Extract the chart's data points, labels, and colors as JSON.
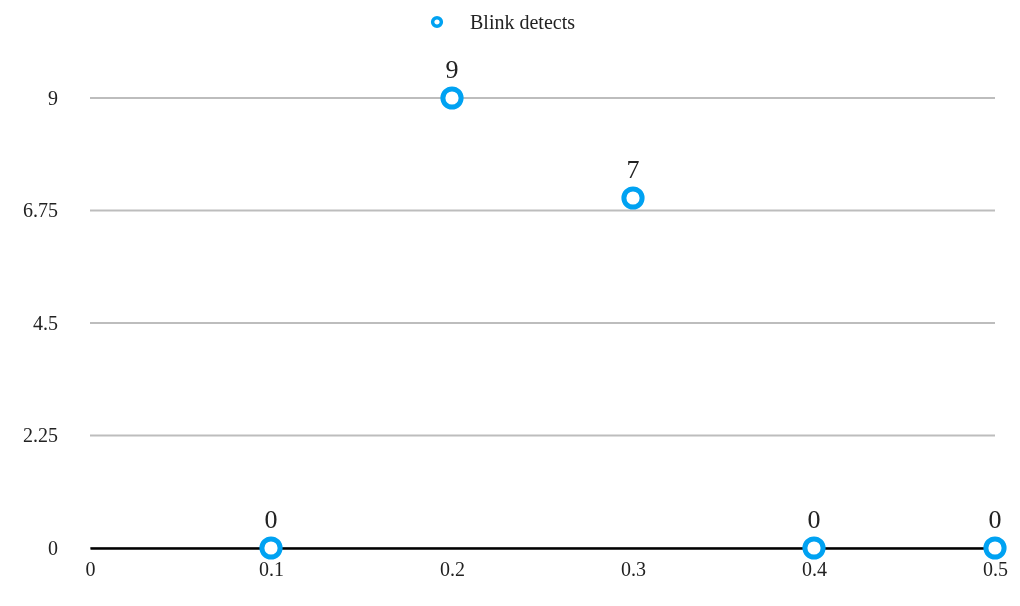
{
  "chart_data": {
    "type": "scatter",
    "x": [
      0.1,
      0.2,
      0.3,
      0.4,
      0.5
    ],
    "series": [
      {
        "name": "Blink detects",
        "color": "#00a2f2",
        "values": [
          0,
          9,
          7,
          0,
          0
        ]
      }
    ],
    "xlim": [
      0,
      0.5
    ],
    "xticks": [
      0,
      0.1,
      0.2,
      0.3,
      0.4,
      0.5
    ],
    "ylim": [
      0,
      9
    ],
    "yticks": [
      0,
      2.25,
      4.5,
      6.75,
      9
    ],
    "grid": "y",
    "legend": "top",
    "marker": "circle",
    "data_labels": true
  }
}
